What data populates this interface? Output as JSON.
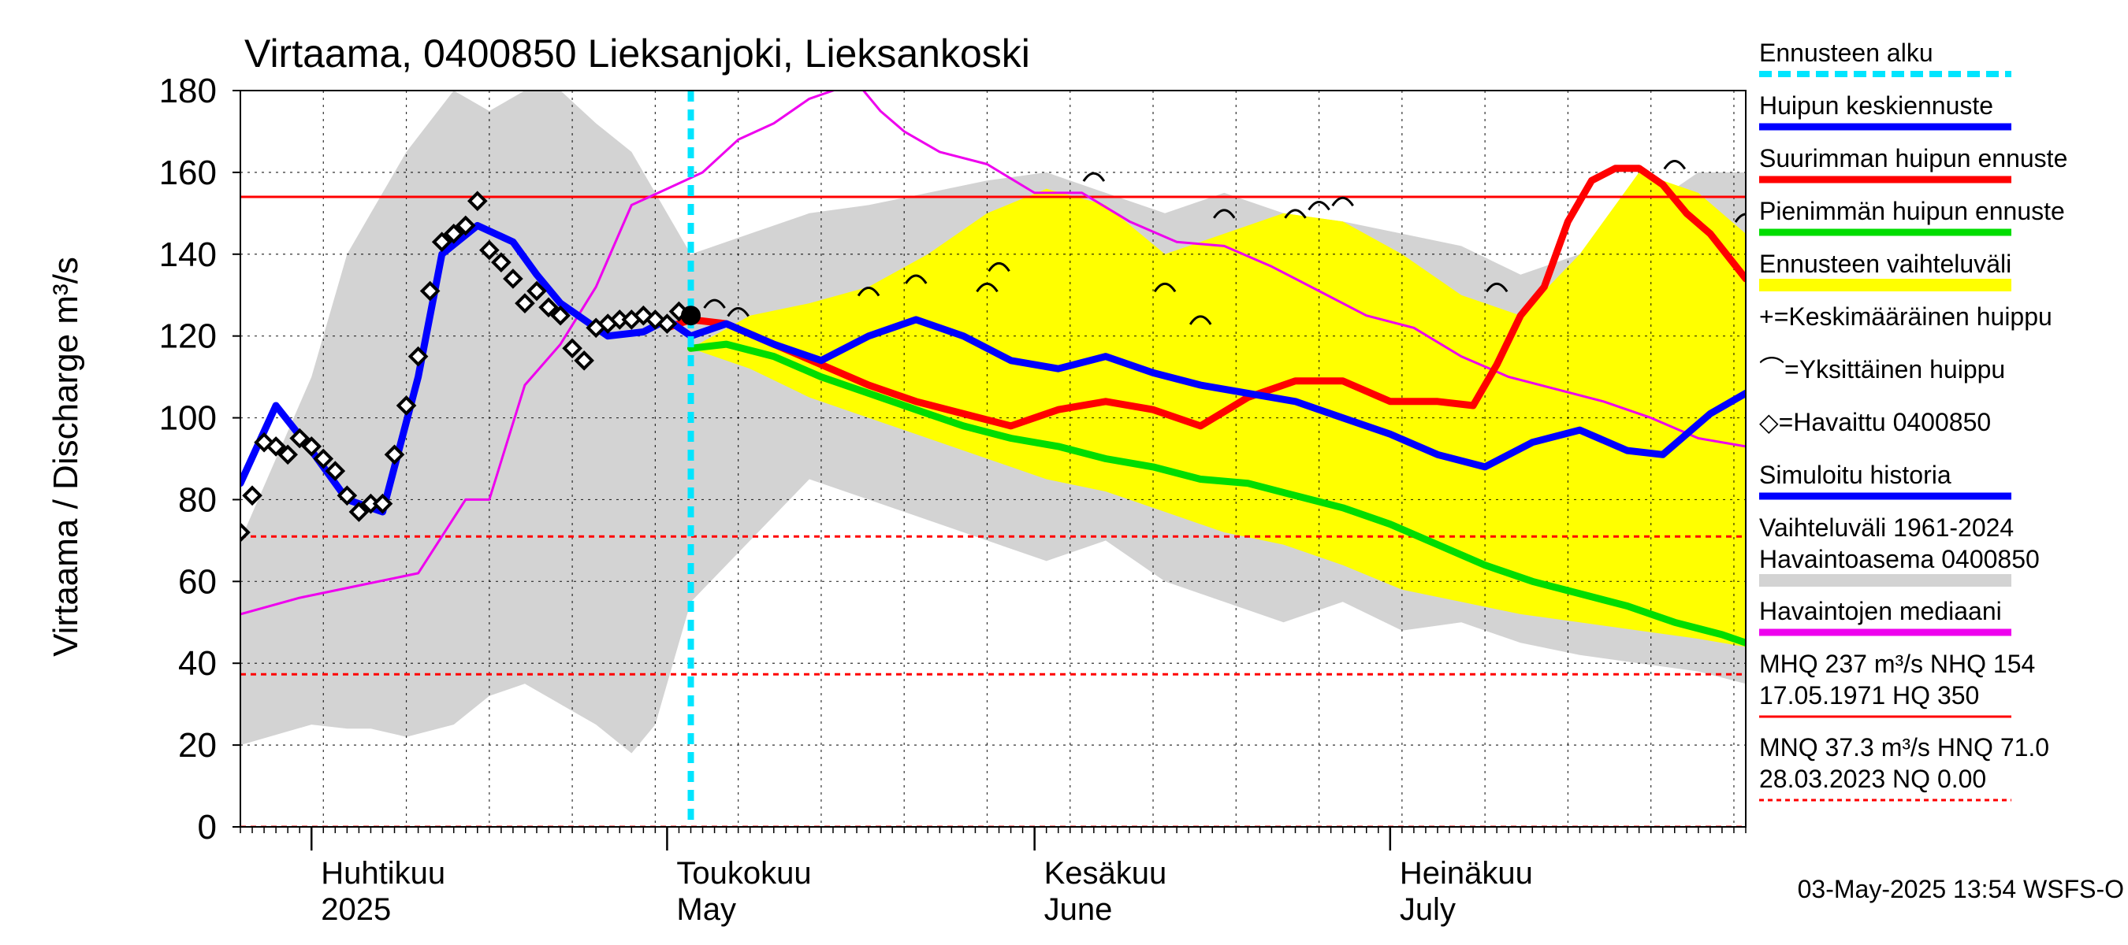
{
  "chart_data": {
    "type": "line",
    "title": "Virtaama, 0400850 Lieksanjoki, Lieksankoski",
    "ylabel": "Virtaama / Discharge   m³/s",
    "ylim": [
      0,
      180
    ],
    "yticks": [
      0,
      20,
      40,
      60,
      80,
      100,
      120,
      140,
      160,
      180
    ],
    "xlim": [
      "2025-03-26",
      "2025-07-31"
    ],
    "month_labels": [
      {
        "top": "Huhtikuu",
        "bottom": "2025",
        "date": "2025-04-01"
      },
      {
        "top": "Toukokuu",
        "bottom": "May",
        "date": "2025-05-01"
      },
      {
        "top": "Kesäkuu",
        "bottom": "June",
        "date": "2025-06-01"
      },
      {
        "top": "Heinäkuu",
        "bottom": "July",
        "date": "2025-07-01"
      }
    ],
    "forecast_start": "2025-05-03",
    "reference_lines": [
      {
        "name": "NHQ",
        "value": 154,
        "color": "#ff0000",
        "style": "solid"
      },
      {
        "name": "HNQ",
        "value": 71.0,
        "color": "#ff0000",
        "style": "dashed"
      },
      {
        "name": "MNQ",
        "value": 37.3,
        "color": "#ff0000",
        "style": "dashed"
      },
      {
        "name": "NQ",
        "value": 0.0,
        "color": "#ff0000",
        "style": "dashed"
      }
    ],
    "historical_range": {
      "name": "Vaihteluväli 1961-2024 Havaintoasema 0400850",
      "color": "#d3d3d3",
      "dates": [
        "2025-03-26",
        "2025-04-01",
        "2025-04-04",
        "2025-04-06",
        "2025-04-09",
        "2025-04-13",
        "2025-04-16",
        "2025-04-19",
        "2025-04-22",
        "2025-04-25",
        "2025-04-28",
        "2025-04-30",
        "2025-05-03",
        "2025-05-08",
        "2025-05-13",
        "2025-05-18",
        "2025-05-23",
        "2025-05-28",
        "2025-06-02",
        "2025-06-07",
        "2025-06-12",
        "2025-06-17",
        "2025-06-22",
        "2025-06-27",
        "2025-07-02",
        "2025-07-07",
        "2025-07-12",
        "2025-07-17",
        "2025-07-22",
        "2025-07-27",
        "2025-07-31"
      ],
      "upper": [
        70,
        110,
        140,
        150,
        165,
        180,
        175,
        180,
        180,
        172,
        165,
        155,
        140,
        145,
        150,
        152,
        155,
        158,
        160,
        155,
        150,
        155,
        150,
        148,
        145,
        142,
        135,
        140,
        150,
        160,
        160
      ],
      "lower": [
        20,
        25,
        24,
        24,
        22,
        25,
        32,
        35,
        30,
        25,
        18,
        25,
        55,
        70,
        85,
        80,
        75,
        70,
        65,
        70,
        60,
        55,
        50,
        55,
        48,
        50,
        45,
        42,
        40,
        38,
        35
      ]
    },
    "series": [
      {
        "name": "Huipun keskiennuste",
        "color": "#0000ff",
        "x": [
          "2025-03-26",
          "2025-03-29",
          "2025-04-01",
          "2025-04-04",
          "2025-04-07",
          "2025-04-10",
          "2025-04-12",
          "2025-04-15",
          "2025-04-18",
          "2025-04-20",
          "2025-04-22",
          "2025-04-24",
          "2025-04-26",
          "2025-04-29",
          "2025-05-01",
          "2025-05-03",
          "2025-05-06",
          "2025-05-10",
          "2025-05-14",
          "2025-05-18",
          "2025-05-22",
          "2025-05-26",
          "2025-05-30",
          "2025-06-03",
          "2025-06-07",
          "2025-06-11",
          "2025-06-15",
          "2025-06-19",
          "2025-06-23",
          "2025-06-27",
          "2025-07-01",
          "2025-07-05",
          "2025-07-09",
          "2025-07-13",
          "2025-07-17",
          "2025-07-21",
          "2025-07-24",
          "2025-07-28",
          "2025-07-31"
        ],
        "y": [
          84,
          103,
          92,
          80,
          77,
          110,
          140,
          147,
          143,
          135,
          128,
          124,
          120,
          121,
          124,
          120,
          123,
          118,
          114,
          120,
          124,
          120,
          114,
          112,
          115,
          111,
          108,
          106,
          104,
          100,
          96,
          91,
          88,
          94,
          97,
          92,
          91,
          101,
          106
        ]
      },
      {
        "name": "Suurimman huipun ennuste",
        "color": "#ff0000",
        "x": [
          "2025-05-01",
          "2025-05-03",
          "2025-05-06",
          "2025-05-10",
          "2025-05-14",
          "2025-05-18",
          "2025-05-22",
          "2025-05-26",
          "2025-05-30",
          "2025-06-03",
          "2025-06-07",
          "2025-06-11",
          "2025-06-15",
          "2025-06-19",
          "2025-06-23",
          "2025-06-27",
          "2025-07-01",
          "2025-07-05",
          "2025-07-08",
          "2025-07-10",
          "2025-07-12",
          "2025-07-14",
          "2025-07-16",
          "2025-07-18",
          "2025-07-20",
          "2025-07-22",
          "2025-07-24",
          "2025-07-26",
          "2025-07-28",
          "2025-07-31"
        ],
        "y": [
          122,
          124,
          123,
          118,
          113,
          108,
          104,
          101,
          98,
          102,
          104,
          102,
          98,
          105,
          109,
          109,
          104,
          104,
          103,
          113,
          125,
          132,
          148,
          158,
          161,
          161,
          157,
          150,
          145,
          134
        ]
      },
      {
        "name": "Pienimmän huipun ennuste",
        "color": "#00dd00",
        "x": [
          "2025-05-03",
          "2025-05-06",
          "2025-05-10",
          "2025-05-14",
          "2025-05-18",
          "2025-05-22",
          "2025-05-26",
          "2025-05-30",
          "2025-06-03",
          "2025-06-07",
          "2025-06-11",
          "2025-06-15",
          "2025-06-19",
          "2025-06-23",
          "2025-06-27",
          "2025-07-01",
          "2025-07-05",
          "2025-07-09",
          "2025-07-13",
          "2025-07-17",
          "2025-07-21",
          "2025-07-25",
          "2025-07-29",
          "2025-07-31"
        ],
        "y": [
          117,
          118,
          115,
          110,
          106,
          102,
          98,
          95,
          93,
          90,
          88,
          85,
          84,
          81,
          78,
          74,
          69,
          64,
          60,
          57,
          54,
          50,
          47,
          45
        ]
      },
      {
        "name": "Havaintojen mediaani",
        "color": "#ee00ee",
        "x": [
          "2025-03-26",
          "2025-03-31",
          "2025-04-05",
          "2025-04-10",
          "2025-04-14",
          "2025-04-16",
          "2025-04-19",
          "2025-04-22",
          "2025-04-25",
          "2025-04-28",
          "2025-05-01",
          "2025-05-04",
          "2025-05-07",
          "2025-05-10",
          "2025-05-13",
          "2025-05-15",
          "2025-05-17",
          "2025-05-19",
          "2025-05-21",
          "2025-05-24",
          "2025-05-28",
          "2025-06-01",
          "2025-06-05",
          "2025-06-09",
          "2025-06-13",
          "2025-06-17",
          "2025-06-21",
          "2025-06-25",
          "2025-06-29",
          "2025-07-03",
          "2025-07-07",
          "2025-07-11",
          "2025-07-15",
          "2025-07-19",
          "2025-07-23",
          "2025-07-27",
          "2025-07-31"
        ],
        "y": [
          52,
          56,
          59,
          62,
          80,
          80,
          108,
          118,
          132,
          152,
          156,
          160,
          168,
          172,
          178,
          180,
          182,
          175,
          170,
          165,
          162,
          155,
          155,
          148,
          143,
          142,
          137,
          131,
          125,
          122,
          115,
          110,
          107,
          104,
          100,
          95,
          93
        ]
      }
    ],
    "forecast_range": {
      "name": "Ennusteen vaihteluväli",
      "color": "#ffff00",
      "dates": [
        "2025-05-03",
        "2025-05-08",
        "2025-05-13",
        "2025-05-18",
        "2025-05-23",
        "2025-05-28",
        "2025-06-02",
        "2025-06-07",
        "2025-06-12",
        "2025-06-17",
        "2025-06-22",
        "2025-06-27",
        "2025-07-02",
        "2025-07-07",
        "2025-07-12",
        "2025-07-17",
        "2025-07-22",
        "2025-07-27",
        "2025-07-31"
      ],
      "upper": [
        117,
        125,
        128,
        132,
        140,
        150,
        156,
        152,
        140,
        145,
        150,
        148,
        140,
        130,
        125,
        140,
        160,
        155,
        145
      ],
      "lower": [
        117,
        112,
        105,
        100,
        95,
        90,
        85,
        82,
        77,
        72,
        69,
        64,
        58,
        55,
        52,
        50,
        48,
        46,
        44
      ]
    },
    "observed": {
      "name": "Havaittu 0400850",
      "marker": "diamond",
      "x": [
        "2025-03-26",
        "2025-03-27",
        "2025-03-28",
        "2025-03-29",
        "2025-03-30",
        "2025-03-31",
        "2025-04-01",
        "2025-04-02",
        "2025-04-03",
        "2025-04-04",
        "2025-04-05",
        "2025-04-06",
        "2025-04-07",
        "2025-04-08",
        "2025-04-09",
        "2025-04-10",
        "2025-04-11",
        "2025-04-12",
        "2025-04-13",
        "2025-04-14",
        "2025-04-15",
        "2025-04-16",
        "2025-04-17",
        "2025-04-18",
        "2025-04-19",
        "2025-04-20",
        "2025-04-21",
        "2025-04-22",
        "2025-04-23",
        "2025-04-24",
        "2025-04-25",
        "2025-04-26",
        "2025-04-27",
        "2025-04-28",
        "2025-04-29",
        "2025-04-30",
        "2025-05-01",
        "2025-05-02"
      ],
      "y": [
        72,
        81,
        94,
        93,
        91,
        95,
        93,
        90,
        87,
        81,
        77,
        79,
        79,
        91,
        103,
        115,
        131,
        143,
        145,
        147,
        153,
        141,
        138,
        134,
        128,
        131,
        127,
        125,
        117,
        114,
        122,
        123,
        124,
        124,
        125,
        124,
        123,
        126
      ]
    },
    "peaks": {
      "name": "Yksittäinen huippu",
      "x": [
        "2025-05-05",
        "2025-05-07",
        "2025-05-18",
        "2025-05-22",
        "2025-05-28",
        "2025-05-29",
        "2025-06-06",
        "2025-06-12",
        "2025-06-15",
        "2025-06-17",
        "2025-06-23",
        "2025-06-25",
        "2025-06-27",
        "2025-07-10",
        "2025-07-25",
        "2025-07-31"
      ],
      "y": [
        128,
        126,
        131,
        134,
        132,
        137,
        159,
        132,
        124,
        150,
        150,
        152,
        153,
        132,
        162,
        149
      ]
    },
    "mean_peak": {
      "name": "Keskimääräinen huippu",
      "x": [
        "2025-05-03"
      ],
      "y": [
        125
      ]
    },
    "legend": [
      {
        "label": "Ennusteen alku",
        "color": "#00e5ff",
        "style": "dashed"
      },
      {
        "label": "Huipun keskiennuste",
        "color": "#0000ff",
        "style": "solid"
      },
      {
        "label": "Suurimman huipun ennuste",
        "color": "#ff0000",
        "style": "solid"
      },
      {
        "label": "Pienimmän huipun ennuste",
        "color": "#00dd00",
        "style": "solid"
      },
      {
        "label": "Ennusteen vaihteluväli",
        "color": "#ffff00",
        "style": "band"
      },
      {
        "label": "+=Keskimääräinen huippu",
        "color": "#000000",
        "style": "symbol"
      },
      {
        "label": "⌒=Yksittäinen huippu",
        "color": "#000000",
        "style": "symbol"
      },
      {
        "label": "◇=Havaittu 0400850",
        "color": "#000000",
        "style": "symbol"
      },
      {
        "label": "Simuloitu historia",
        "color": "#0000ff",
        "style": "solid"
      },
      {
        "label": "Vaihteluväli 1961-2024",
        "label2": " Havaintoasema 0400850",
        "color": "#d3d3d3",
        "style": "band"
      },
      {
        "label": "Havaintojen mediaani",
        "color": "#ee00ee",
        "style": "solid"
      },
      {
        "label": "MHQ  237 m³/s NHQ  154",
        "label2": "17.05.1971 HQ  350",
        "color": "#ff0000",
        "style": "solid"
      },
      {
        "label": "MNQ 37.3 m³/s HNQ 71.0",
        "label2": "28.03.2023 NQ 0.00",
        "color": "#ff0000",
        "style": "dashed"
      }
    ],
    "footer": "03-May-2025 13:54 WSFS-O"
  }
}
